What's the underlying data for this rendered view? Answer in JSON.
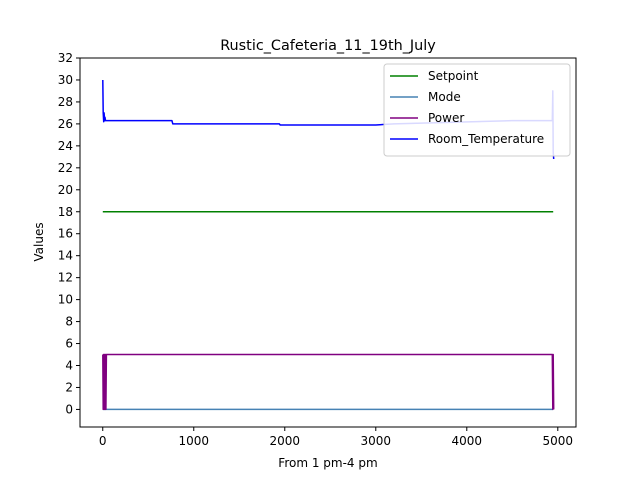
{
  "chart_data": {
    "type": "line",
    "title": "Rustic_Cafeteria_11_19th_July",
    "xlabel": "From 1 pm-4 pm",
    "ylabel": "Values",
    "xlim": [
      -250,
      5200
    ],
    "ylim": [
      -1.6,
      32
    ],
    "xticks": [
      0,
      1000,
      2000,
      3000,
      4000,
      5000
    ],
    "yticks": [
      0,
      2,
      4,
      6,
      8,
      10,
      12,
      14,
      16,
      18,
      20,
      22,
      24,
      26,
      28,
      30,
      32
    ],
    "grid": false,
    "legend_position": "top-right",
    "series": [
      {
        "name": "Setpoint",
        "color": "#008000",
        "x": [
          0,
          4950
        ],
        "y": [
          18,
          18
        ]
      },
      {
        "name": "Mode",
        "color": "#4682b4",
        "x": [
          0,
          4950
        ],
        "y": [
          0,
          0
        ]
      },
      {
        "name": "Power",
        "color": "#800080",
        "x": [
          0,
          5,
          10,
          15,
          20,
          25,
          30,
          35,
          40,
          4940,
          4945,
          4950,
          4955
        ],
        "y": [
          5,
          0,
          5,
          0,
          5,
          0,
          5,
          0,
          5,
          5,
          0,
          5,
          0
        ]
      },
      {
        "name": "Room_Temperature",
        "color": "#0000ff",
        "x": [
          0,
          5,
          10,
          15,
          20,
          25,
          30,
          40,
          760,
          770,
          1940,
          1950,
          3000,
          3200,
          4500,
          4940,
          4945,
          4950,
          4955
        ],
        "y": [
          30,
          27,
          26.2,
          27,
          26.3,
          26.6,
          26.3,
          26.3,
          26.3,
          26,
          26,
          25.9,
          25.9,
          26,
          26.3,
          26.3,
          29,
          23.5,
          22.8
        ]
      }
    ]
  }
}
